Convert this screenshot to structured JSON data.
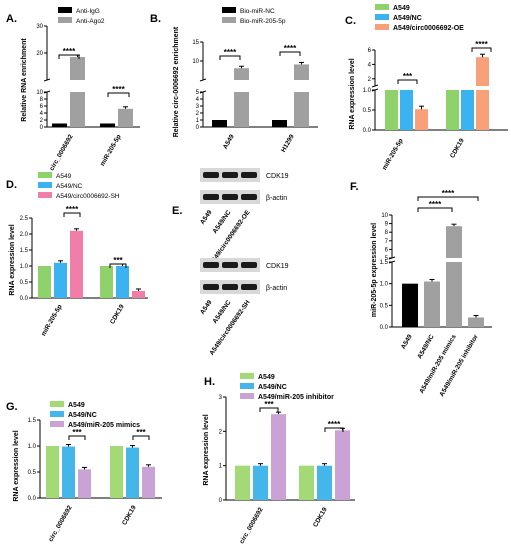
{
  "chart_data": [
    {
      "panel": "A.",
      "type": "bar",
      "ylabel": "Relative RNA enrichment",
      "categories": [
        "circ_0006692",
        "miR-205-5p"
      ],
      "series": [
        {
          "name": "Anti-IgG",
          "color": "#000000",
          "values": [
            1,
            1
          ]
        },
        {
          "name": "Anti-Ago2",
          "color": "#a0a0a0",
          "values": [
            18.5,
            5.2
          ]
        }
      ],
      "yticks": [
        "0",
        "2",
        "4",
        "6",
        "8",
        "10",
        "20",
        "30"
      ],
      "significance": [
        "****",
        "****"
      ]
    },
    {
      "panel": "B.",
      "type": "bar",
      "ylabel": "Relative circ-0006692 enrichment",
      "categories": [
        "A549",
        "H1299"
      ],
      "series": [
        {
          "name": "Bio-miR-NC",
          "color": "#000000",
          "values": [
            1,
            1
          ]
        },
        {
          "name": "Bio-miR-205-5p",
          "color": "#a0a0a0",
          "values": [
            8.1,
            9.1
          ]
        }
      ],
      "yticks": [
        "0",
        "1",
        "2",
        "3",
        "4",
        "5",
        "10",
        "15"
      ],
      "significance": [
        "****",
        "****"
      ]
    },
    {
      "panel": "C.",
      "type": "bar",
      "ylabel": "RNA expression level",
      "categories": [
        "miR-205-5p",
        "CDK19"
      ],
      "series": [
        {
          "name": "A549",
          "color": "#8fd16b",
          "values": [
            1,
            1
          ]
        },
        {
          "name": "A549/NC",
          "color": "#3bb3f0",
          "values": [
            1,
            1
          ]
        },
        {
          "name": "A549/circ0006692-OE",
          "color": "#f7a07a",
          "values": [
            0.52,
            5.0
          ]
        }
      ],
      "yticks": [
        "0.0",
        "0.5",
        "1.0",
        "2",
        "4",
        "6"
      ],
      "significance": [
        "***",
        "****"
      ]
    },
    {
      "panel": "D.",
      "type": "bar",
      "ylabel": "RNA expression level",
      "categories": [
        "miR-205-5p",
        "CDK19"
      ],
      "series": [
        {
          "name": "A549",
          "color": "#8fd16b",
          "values": [
            1.0,
            1.0
          ]
        },
        {
          "name": "A549/NC",
          "color": "#3bb3f0",
          "values": [
            1.1,
            1.0
          ]
        },
        {
          "name": "A549/circ0006692-SH",
          "color": "#ef7fa8",
          "values": [
            2.1,
            0.22
          ]
        }
      ],
      "ylim": [
        0,
        2.5
      ],
      "yticks": [
        "0.0",
        "0.5",
        "1.0",
        "1.5",
        "2.0",
        "2.5"
      ],
      "significance": [
        "****",
        "***"
      ]
    },
    {
      "panel": "F.",
      "type": "bar",
      "ylabel": "miR-205-5p expression level",
      "categories": [
        "A549",
        "A549/NC",
        "A549/miR-205 mimics",
        "A549/miR-205 inhibitor"
      ],
      "colors": [
        "#000000",
        "#a0a0a0",
        "#a0a0a0",
        "#a0a0a0"
      ],
      "values": [
        1.0,
        1.05,
        8.7,
        0.22
      ],
      "yticks": [
        "0.0",
        "0.5",
        "1.0",
        "1.5",
        "5",
        "6",
        "7",
        "8",
        "9",
        "10"
      ],
      "significance": [
        "****",
        "****"
      ]
    },
    {
      "panel": "G.",
      "type": "bar",
      "ylabel": "RNA expression level",
      "categories": [
        "circ_0006692",
        "CDK19"
      ],
      "series": [
        {
          "name": "A549",
          "color": "#a3d977",
          "values": [
            1.0,
            1.0
          ]
        },
        {
          "name": "A549/NC",
          "color": "#45b6ea",
          "values": [
            0.99,
            0.97
          ]
        },
        {
          "name": "A549/miR-205 mimics",
          "color": "#c9a2d6",
          "values": [
            0.55,
            0.6
          ]
        }
      ],
      "ylim": [
        0,
        1.5
      ],
      "yticks": [
        "0.0",
        "0.5",
        "1.0",
        "1.5"
      ],
      "significance": [
        "***",
        "***"
      ]
    },
    {
      "panel": "H.",
      "type": "bar",
      "ylabel": "RNA expression level",
      "categories": [
        "circ_0006692",
        "CDK19"
      ],
      "series": [
        {
          "name": "A549",
          "color": "#a3d977",
          "values": [
            1.0,
            1.0
          ]
        },
        {
          "name": "A549/NC",
          "color": "#45b6ea",
          "values": [
            1.0,
            1.0
          ]
        },
        {
          "name": "A549/miR-205 inhibitor",
          "color": "#c9a2d6",
          "values": [
            2.5,
            2.03
          ]
        }
      ],
      "ylim": [
        0,
        3
      ],
      "yticks": [
        "0",
        "1",
        "2",
        "3"
      ],
      "significance": [
        "***",
        "****"
      ]
    }
  ],
  "panel_e": {
    "label": "E.",
    "top_blot": {
      "bands": [
        "CDK19",
        "β-actin"
      ],
      "lanes": [
        "A549",
        "A549/NC",
        "A549/circ0006692-OE"
      ]
    },
    "bottom_blot": {
      "bands": [
        "CDK19",
        "β-actin"
      ],
      "lanes": [
        "A549",
        "A549/NC",
        "A549/circ0006692-SH"
      ]
    }
  }
}
